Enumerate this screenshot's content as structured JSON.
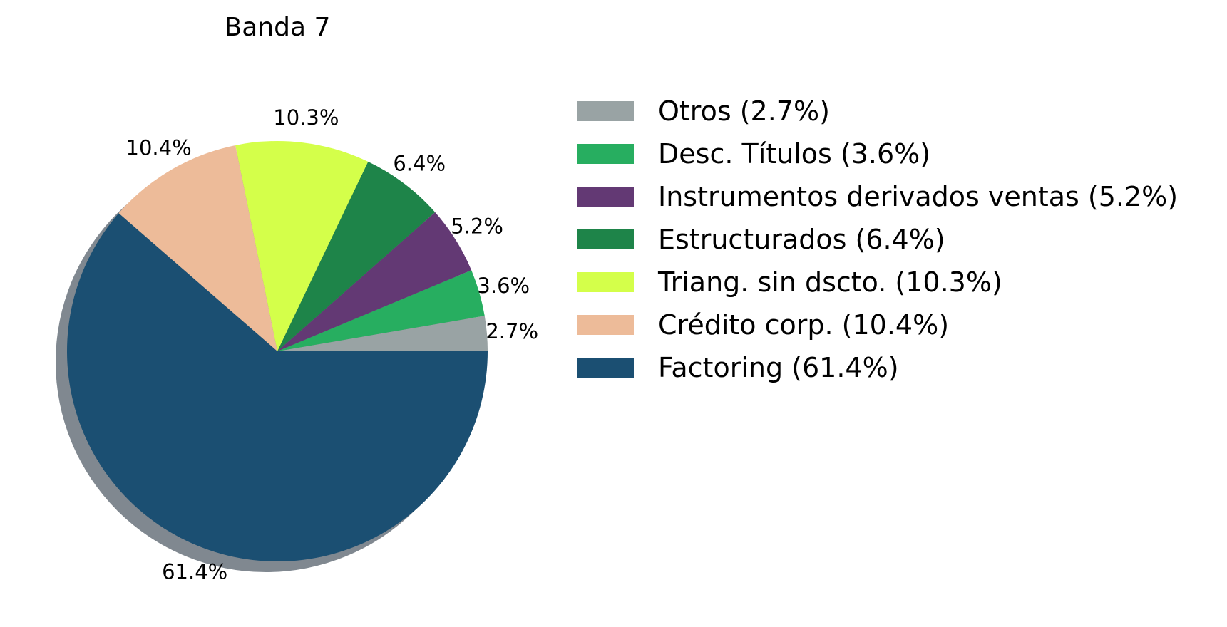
{
  "chart_data": {
    "type": "pie",
    "title": "Banda 7",
    "shadow": true,
    "legend_position": "right",
    "start_angle_deg": 0,
    "direction": "counterclockwise",
    "slices": [
      {
        "label": "Otros",
        "value": 2.7,
        "pct_label": "2.7%",
        "legend": "Otros (2.7%)",
        "color": "#99a3a4"
      },
      {
        "label": "Desc. Títulos",
        "value": 3.6,
        "pct_label": "3.6%",
        "legend": "Desc. Títulos (3.6%)",
        "color": "#27ae60"
      },
      {
        "label": "Instrumentos derivados ventas",
        "value": 5.2,
        "pct_label": "5.2%",
        "legend": "Instrumentos derivados ventas (5.2%)",
        "color": "#633974"
      },
      {
        "label": "Estructurados",
        "value": 6.4,
        "pct_label": "6.4%",
        "legend": "Estructurados (6.4%)",
        "color": "#1e8449"
      },
      {
        "label": "Triang. sin dscto.",
        "value": 10.3,
        "pct_label": "10.3%",
        "legend": "Triang. sin dscto. (10.3%)",
        "color": "#d4ff4a"
      },
      {
        "label": "Crédito corp.",
        "value": 10.4,
        "pct_label": "10.4%",
        "legend": "Crédito corp. (10.4%)",
        "color": "#edbb99"
      },
      {
        "label": "Factoring",
        "value": 61.4,
        "pct_label": "61.4%",
        "legend": "Factoring (61.4%)",
        "color": "#1b4f72"
      }
    ]
  }
}
